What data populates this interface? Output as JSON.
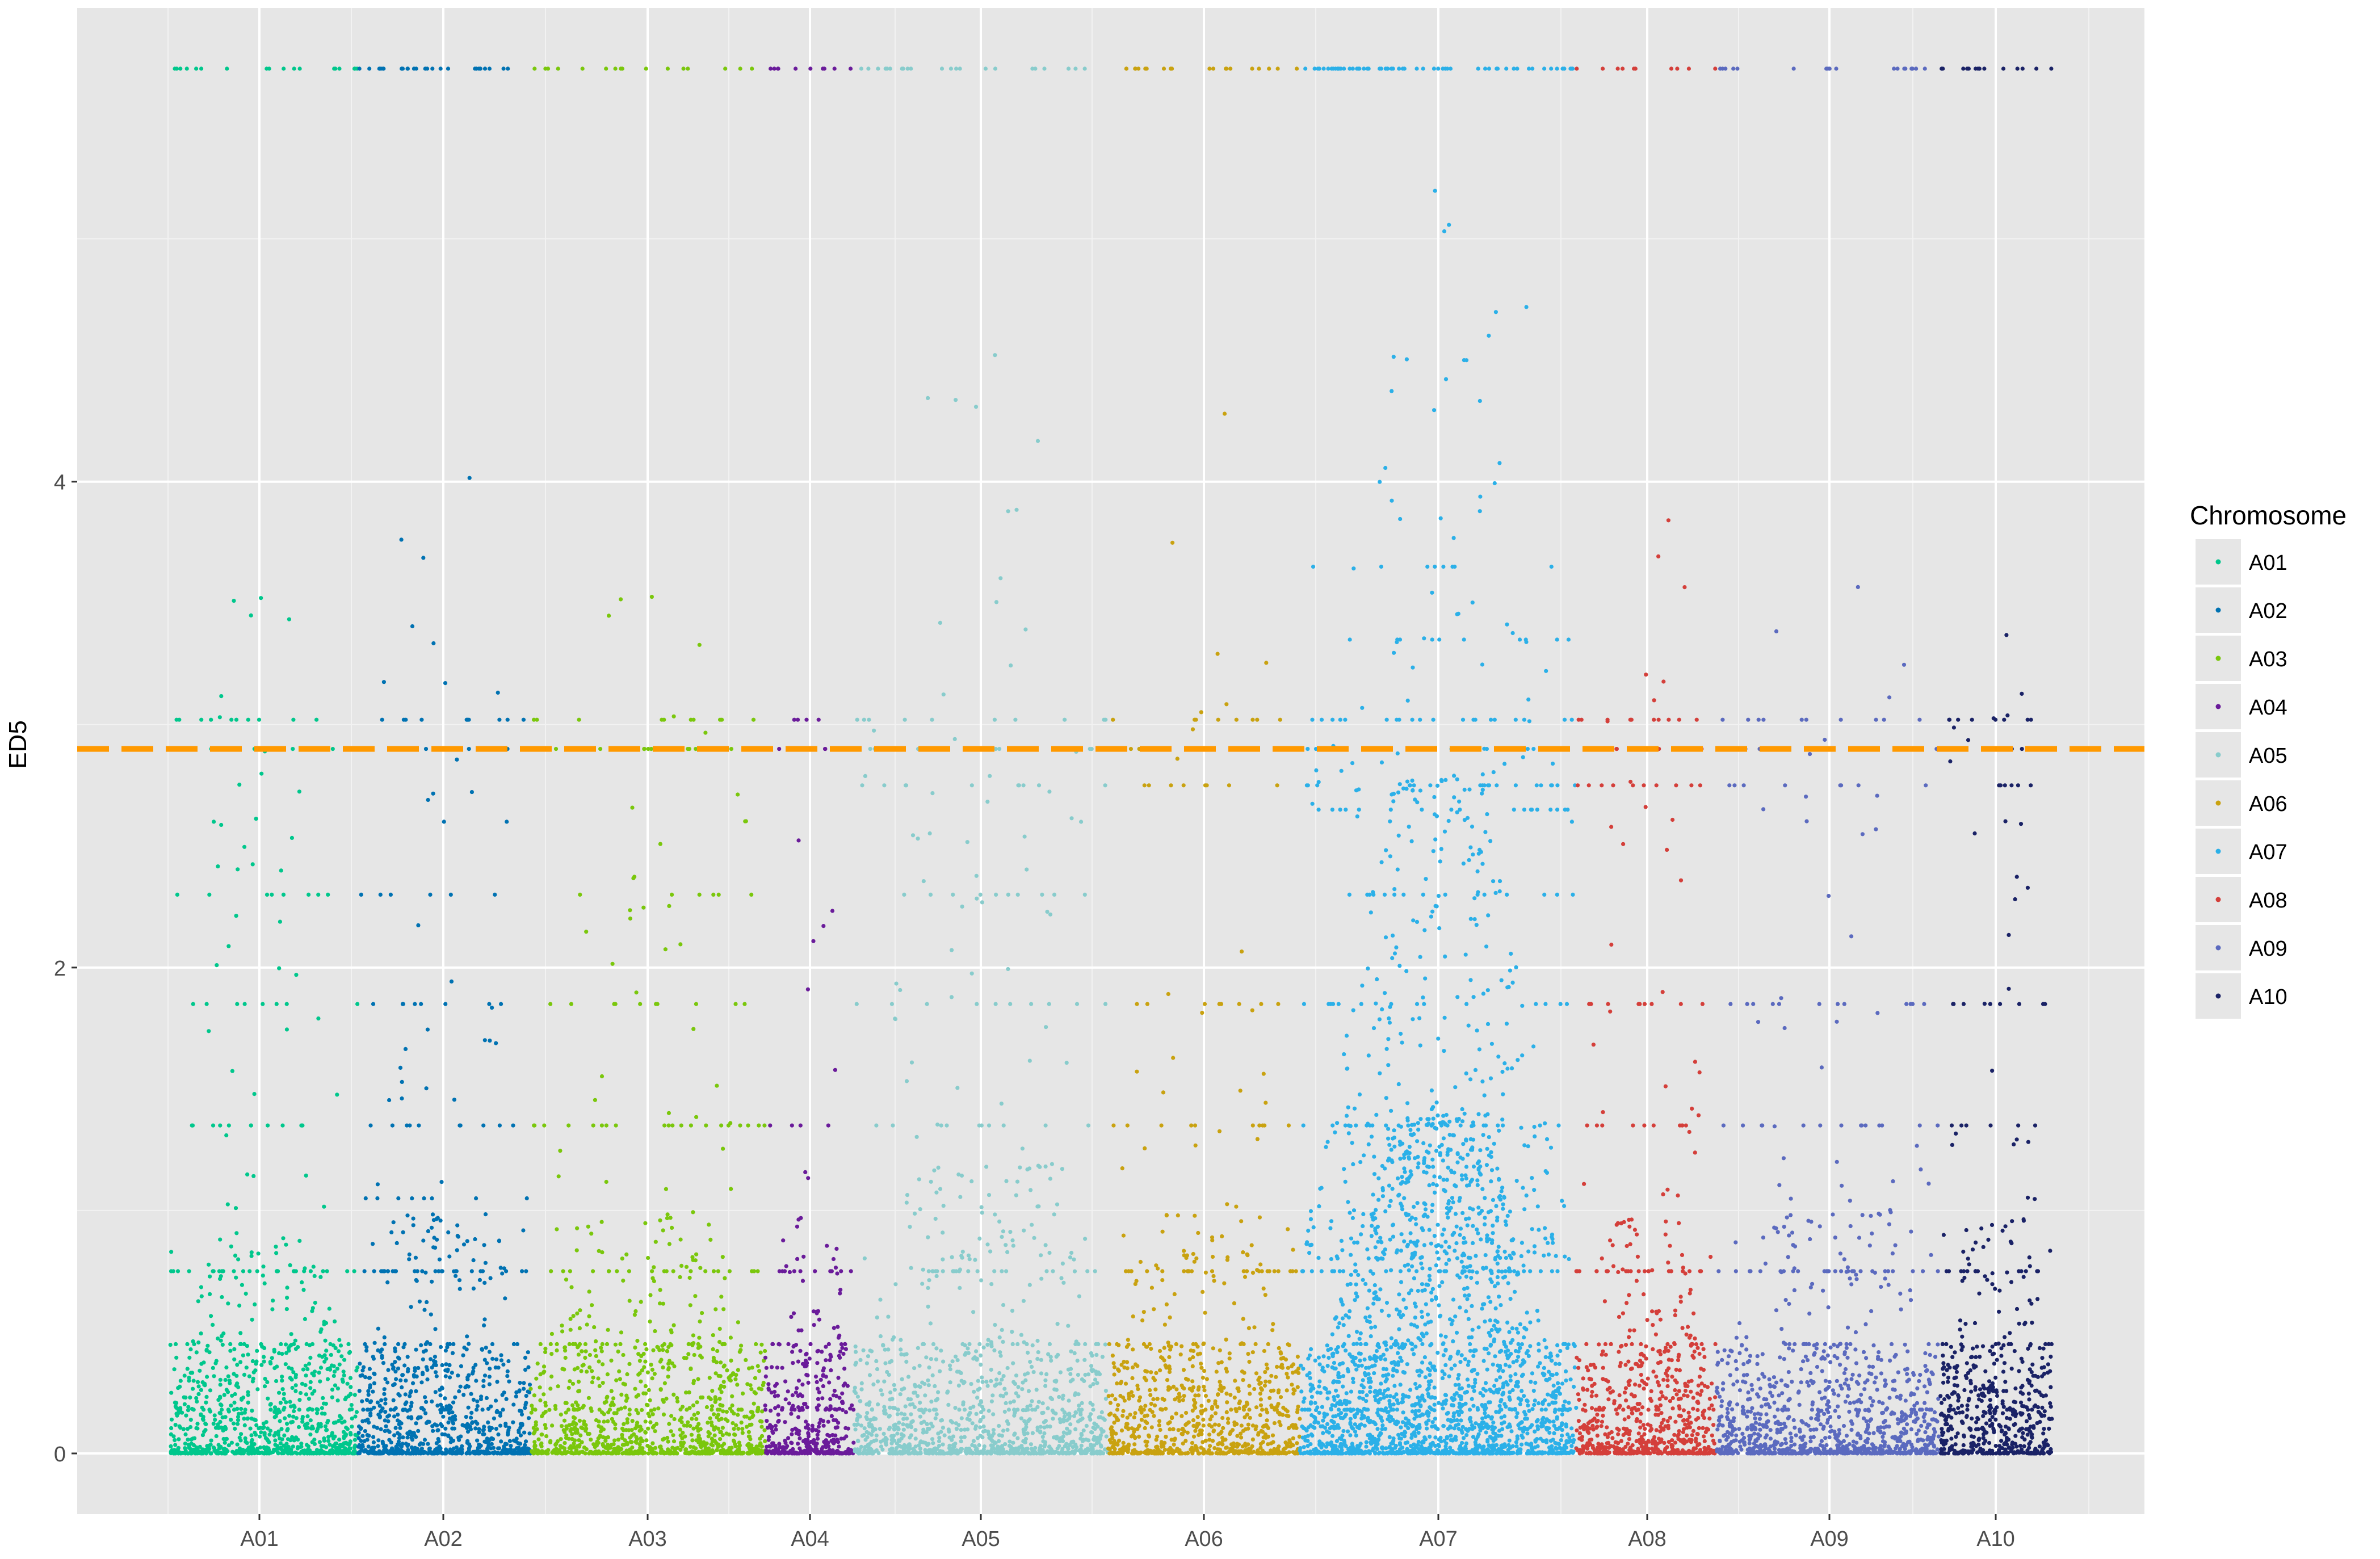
{
  "chart_data": {
    "type": "scatter",
    "subtype": "manhattan",
    "title": "",
    "xlabel": "",
    "ylabel": "ED5",
    "ylim": [
      -0.25,
      5.95
    ],
    "y_ticks": [
      0,
      2,
      4
    ],
    "x_ticks": [
      "A01",
      "A02",
      "A03",
      "A04",
      "A05",
      "A06",
      "A07",
      "A08",
      "A09",
      "A10"
    ],
    "grid": true,
    "background": "#e6e6e6",
    "legend": {
      "title": "Chromosome",
      "position": "right"
    },
    "threshold": {
      "y": 2.9,
      "color": "#ff9900",
      "style": "dashed"
    },
    "series": [
      {
        "name": "A01",
        "color": "#00c78c",
        "band_dots": 700,
        "band_max": 0.45,
        "levels": [
          [
            0.18,
            18
          ],
          [
            0.45,
            14
          ],
          [
            0.75,
            26
          ],
          [
            1.35,
            12
          ],
          [
            1.85,
            8
          ],
          [
            2.3,
            8
          ],
          [
            2.9,
            16
          ],
          [
            3.02,
            10
          ],
          [
            5.7,
            18
          ]
        ],
        "scatter": [
          [
            0.1,
            0.9,
            0.6,
            160
          ],
          [
            0.8,
            2.6,
            0.5,
            30
          ],
          [
            2.6,
            3.55,
            0.35,
            12
          ]
        ]
      },
      {
        "name": "A02",
        "color": "#0072b2",
        "band_dots": 650,
        "band_max": 0.45,
        "levels": [
          [
            0.18,
            16
          ],
          [
            0.45,
            12
          ],
          [
            0.75,
            26
          ],
          [
            1.05,
            8
          ],
          [
            1.35,
            10
          ],
          [
            1.85,
            8
          ],
          [
            2.3,
            6
          ],
          [
            2.9,
            14
          ],
          [
            3.02,
            10
          ],
          [
            5.7,
            26
          ]
        ],
        "scatter": [
          [
            0.1,
            1.0,
            0.6,
            140
          ],
          [
            0.8,
            2.4,
            0.4,
            25
          ],
          [
            2.6,
            4.2,
            0.4,
            14
          ]
        ]
      },
      {
        "name": "A03",
        "color": "#7ac70c",
        "band_dots": 800,
        "band_max": 0.45,
        "levels": [
          [
            0.18,
            18
          ],
          [
            0.45,
            20
          ],
          [
            0.75,
            20
          ],
          [
            1.35,
            20
          ],
          [
            1.85,
            10
          ],
          [
            2.3,
            6
          ],
          [
            2.9,
            16
          ],
          [
            3.02,
            10
          ],
          [
            5.7,
            16
          ]
        ],
        "scatter": [
          [
            0.1,
            1.0,
            0.6,
            180
          ],
          [
            0.8,
            2.6,
            0.5,
            30
          ],
          [
            2.6,
            3.55,
            0.35,
            10
          ]
        ]
      },
      {
        "name": "A04",
        "color": "#6a1b9a",
        "band_dots": 320,
        "band_max": 0.45,
        "levels": [
          [
            0.18,
            10
          ],
          [
            0.45,
            8
          ],
          [
            0.75,
            10
          ],
          [
            1.35,
            4
          ],
          [
            2.9,
            6
          ],
          [
            3.02,
            4
          ],
          [
            5.7,
            10
          ]
        ],
        "scatter": [
          [
            0.1,
            1.0,
            0.6,
            70
          ],
          [
            0.8,
            2.6,
            0.5,
            12
          ]
        ]
      },
      {
        "name": "A05",
        "color": "#88cccc",
        "band_dots": 850,
        "band_max": 0.45,
        "levels": [
          [
            0.18,
            20
          ],
          [
            0.45,
            16
          ],
          [
            0.75,
            18
          ],
          [
            1.35,
            10
          ],
          [
            1.85,
            10
          ],
          [
            2.3,
            10
          ],
          [
            2.75,
            10
          ],
          [
            2.9,
            16
          ],
          [
            3.02,
            10
          ],
          [
            5.7,
            22
          ]
        ],
        "scatter": [
          [
            0.1,
            1.2,
            0.6,
            220
          ],
          [
            0.8,
            2.8,
            0.5,
            45
          ],
          [
            2.6,
            4.8,
            0.3,
            20
          ]
        ]
      },
      {
        "name": "A06",
        "color": "#c9a210",
        "band_dots": 650,
        "band_max": 0.45,
        "levels": [
          [
            0.18,
            14
          ],
          [
            0.45,
            12
          ],
          [
            0.75,
            24
          ],
          [
            1.35,
            10
          ],
          [
            1.85,
            8
          ],
          [
            2.75,
            8
          ],
          [
            2.9,
            14
          ],
          [
            3.02,
            8
          ],
          [
            5.7,
            20
          ]
        ],
        "scatter": [
          [
            0.1,
            1.0,
            0.6,
            150
          ],
          [
            0.8,
            2.4,
            0.5,
            25
          ],
          [
            2.6,
            4.4,
            0.3,
            8
          ]
        ]
      },
      {
        "name": "A07",
        "color": "#2bb0e8",
        "band_dots": 1000,
        "band_max": 0.45,
        "levels": [
          [
            0.18,
            24
          ],
          [
            0.45,
            20
          ],
          [
            0.75,
            34
          ],
          [
            1.35,
            20
          ],
          [
            1.85,
            14
          ],
          [
            2.3,
            14
          ],
          [
            2.65,
            18
          ],
          [
            2.75,
            20
          ],
          [
            2.9,
            22
          ],
          [
            3.02,
            20
          ],
          [
            3.35,
            10
          ],
          [
            3.65,
            8
          ],
          [
            5.7,
            60
          ]
        ],
        "scatter": [
          [
            0.1,
            1.4,
            0.3,
            900
          ],
          [
            0.8,
            2.8,
            0.3,
            350
          ],
          [
            2.6,
            4.6,
            0.3,
            60
          ],
          [
            4.6,
            5.2,
            0.05,
            6
          ]
        ]
      },
      {
        "name": "A08",
        "color": "#d43f3a",
        "band_dots": 520,
        "band_max": 0.45,
        "levels": [
          [
            0.18,
            12
          ],
          [
            0.45,
            12
          ],
          [
            0.75,
            22
          ],
          [
            1.35,
            10
          ],
          [
            1.85,
            10
          ],
          [
            2.75,
            10
          ],
          [
            2.9,
            12
          ],
          [
            3.02,
            10
          ],
          [
            5.7,
            10
          ]
        ],
        "scatter": [
          [
            0.1,
            1.0,
            0.5,
            130
          ],
          [
            0.8,
            2.6,
            0.5,
            25
          ],
          [
            2.6,
            3.9,
            0.4,
            10
          ]
        ]
      },
      {
        "name": "A09",
        "color": "#5b6abf",
        "band_dots": 800,
        "band_max": 0.45,
        "levels": [
          [
            0.18,
            16
          ],
          [
            0.45,
            14
          ],
          [
            0.75,
            26
          ],
          [
            1.35,
            14
          ],
          [
            1.85,
            12
          ],
          [
            2.75,
            8
          ],
          [
            2.9,
            14
          ],
          [
            3.02,
            10
          ],
          [
            5.7,
            18
          ]
        ],
        "scatter": [
          [
            0.1,
            1.0,
            0.6,
            160
          ],
          [
            0.8,
            2.6,
            0.5,
            30
          ],
          [
            2.6,
            3.9,
            0.4,
            10
          ]
        ]
      },
      {
        "name": "A10",
        "color": "#1a2266",
        "band_dots": 420,
        "band_max": 0.45,
        "levels": [
          [
            0.18,
            10
          ],
          [
            0.45,
            10
          ],
          [
            0.75,
            14
          ],
          [
            1.35,
            6
          ],
          [
            1.85,
            8
          ],
          [
            2.75,
            6
          ],
          [
            2.9,
            8
          ],
          [
            3.02,
            8
          ],
          [
            5.7,
            14
          ]
        ],
        "scatter": [
          [
            0.1,
            1.0,
            0.6,
            110
          ],
          [
            0.8,
            2.6,
            0.5,
            22
          ],
          [
            2.6,
            3.7,
            0.4,
            8
          ]
        ]
      }
    ]
  }
}
